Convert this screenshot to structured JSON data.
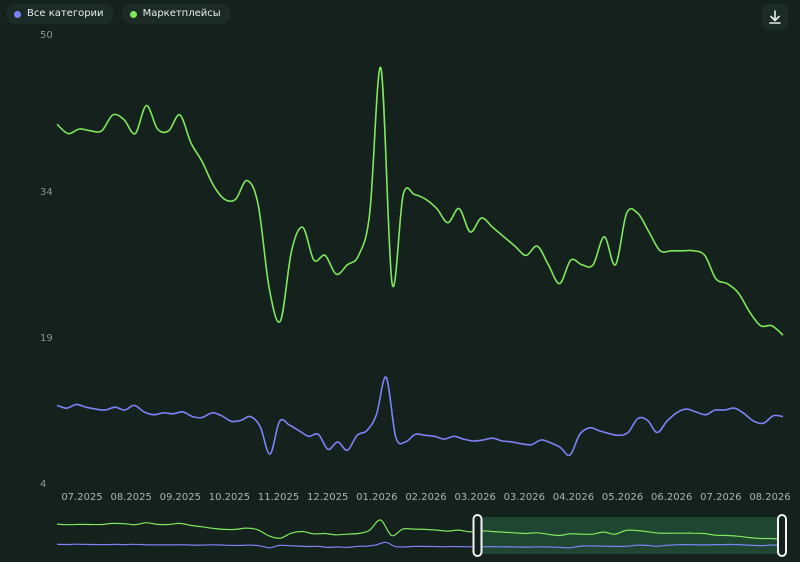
{
  "chart_data": {
    "type": "line",
    "series": [
      {
        "name": "Все категории",
        "color": "#7c83f7",
        "values": [
          12.5,
          12.2,
          12.6,
          12.3,
          12.1,
          12.0,
          12.3,
          12.0,
          12.5,
          11.8,
          11.5,
          11.7,
          11.6,
          11.8,
          11.3,
          11.2,
          11.7,
          11.4,
          10.8,
          10.9,
          11.3,
          10.2,
          7.3,
          10.8,
          10.4,
          9.8,
          9.2,
          9.4,
          7.8,
          8.6,
          7.7,
          9.3,
          9.8,
          11.5,
          15.5,
          9.1,
          8.6,
          9.4,
          9.3,
          9.2,
          8.9,
          9.2,
          8.9,
          8.7,
          8.8,
          9.0,
          8.7,
          8.6,
          8.4,
          8.3,
          8.8,
          8.5,
          8.0,
          7.2,
          9.4,
          10.1,
          9.8,
          9.5,
          9.3,
          9.6,
          11.1,
          10.9,
          9.6,
          10.8,
          11.7,
          12.1,
          11.8,
          11.5,
          12.0,
          12.0,
          12.2,
          11.6,
          10.8,
          10.6,
          11.4,
          11.3
        ]
      },
      {
        "name": "Маркетплейсы",
        "color": "#7fe85c",
        "values": [
          42.5,
          41.5,
          42.0,
          41.8,
          41.8,
          43.5,
          43.0,
          41.5,
          44.5,
          42.0,
          41.8,
          43.5,
          40.5,
          38.5,
          36.0,
          34.5,
          34.5,
          36.5,
          34.0,
          25.0,
          21.5,
          29.0,
          31.5,
          28.0,
          28.5,
          26.5,
          27.5,
          28.5,
          33.0,
          48.5,
          25.5,
          35.0,
          35.0,
          34.5,
          33.5,
          32.0,
          33.5,
          31.0,
          32.5,
          31.5,
          30.5,
          29.5,
          28.5,
          29.5,
          27.5,
          25.5,
          28.0,
          27.5,
          27.5,
          30.5,
          27.5,
          33.0,
          33.0,
          31.0,
          29.0,
          29.0,
          29.0,
          29.0,
          28.5,
          26.0,
          25.5,
          24.5,
          22.5,
          21.0,
          21.0,
          20.0
        ]
      }
    ],
    "x_tick_labels": [
      "07.2025",
      "08.2025",
      "09.2025",
      "10.2025",
      "11.2025",
      "12.2025",
      "01.2026",
      "02.2026",
      "03.2026",
      "03.2026",
      "04.2026",
      "05.2026",
      "06.2026",
      "07.2026",
      "08.2026"
    ],
    "y_tick_labels": [
      "50",
      "34",
      "19",
      "4"
    ],
    "ylim": [
      4,
      50
    ],
    "xlabel": "",
    "ylabel": "",
    "grid": false,
    "legend_position": "top-left",
    "navigator_selection": [
      0.58,
      1.0
    ]
  },
  "toolbar": {
    "download_icon": "download-icon"
  }
}
